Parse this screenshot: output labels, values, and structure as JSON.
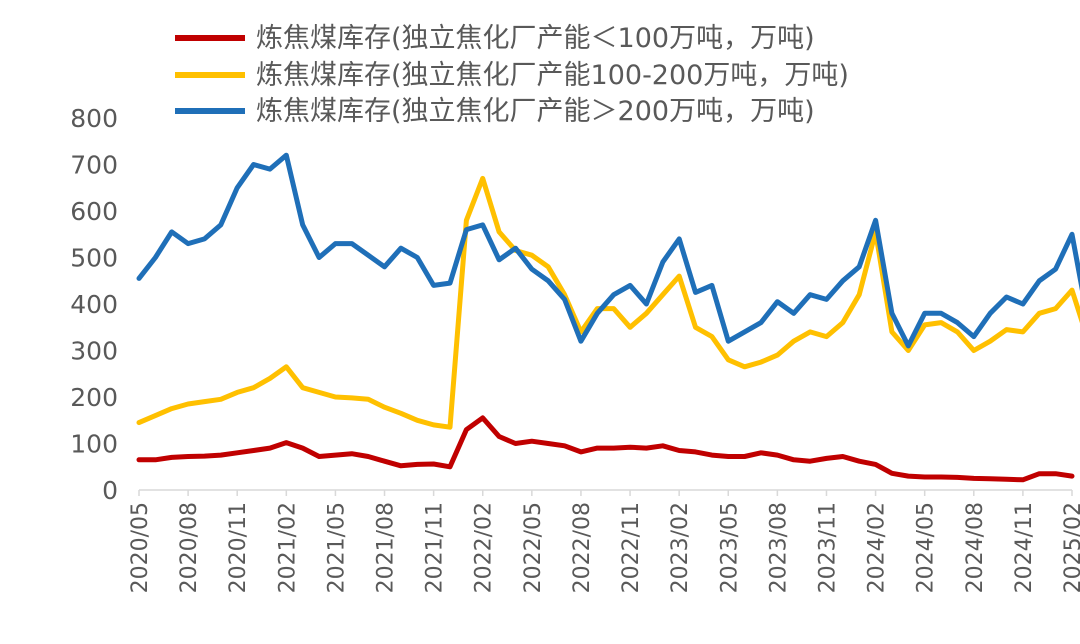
{
  "chart_data": {
    "type": "line",
    "title": "",
    "xlabel": "",
    "ylabel": "",
    "ylim": [
      0,
      800
    ],
    "y_ticks": [
      "0",
      "100",
      "200",
      "300",
      "400",
      "500",
      "600",
      "700",
      "800"
    ],
    "x_tick_labels": [
      "2020/05",
      "2020/08",
      "2020/11",
      "2021/02",
      "2021/05",
      "2021/08",
      "2021/11",
      "2022/02",
      "2022/05",
      "2022/08",
      "2022/11",
      "2023/02",
      "2023/05",
      "2023/08",
      "2023/11",
      "2024/02",
      "2024/05",
      "2024/08",
      "2024/11",
      "2025/02"
    ],
    "legend_position": "top",
    "grid": false,
    "series": [
      {
        "name": "炼焦煤库存(独立焦化厂产能＜100万吨，万吨)",
        "color": "#C00000",
        "points": [
          [
            "2020/05",
            65
          ],
          [
            "2020/06",
            65
          ],
          [
            "2020/07",
            70
          ],
          [
            "2020/08",
            72
          ],
          [
            "2020/09",
            73
          ],
          [
            "2020/10",
            75
          ],
          [
            "2020/11",
            80
          ],
          [
            "2020/12",
            85
          ],
          [
            "2021/01",
            90
          ],
          [
            "2021/02",
            102
          ],
          [
            "2021/03",
            90
          ],
          [
            "2021/04",
            72
          ],
          [
            "2021/05",
            75
          ],
          [
            "2021/06",
            78
          ],
          [
            "2021/07",
            72
          ],
          [
            "2021/08",
            62
          ],
          [
            "2021/09",
            52
          ],
          [
            "2021/10",
            55
          ],
          [
            "2021/11",
            56
          ],
          [
            "2021/12",
            50
          ],
          [
            "2022/01",
            130
          ],
          [
            "2022/02",
            155
          ],
          [
            "2022/03",
            115
          ],
          [
            "2022/04",
            100
          ],
          [
            "2022/05",
            105
          ],
          [
            "2022/06",
            100
          ],
          [
            "2022/07",
            95
          ],
          [
            "2022/08",
            82
          ],
          [
            "2022/09",
            90
          ],
          [
            "2022/10",
            90
          ],
          [
            "2022/11",
            92
          ],
          [
            "2022/12",
            90
          ],
          [
            "2023/01",
            95
          ],
          [
            "2023/02",
            85
          ],
          [
            "2023/03",
            82
          ],
          [
            "2023/04",
            75
          ],
          [
            "2023/05",
            72
          ],
          [
            "2023/06",
            72
          ],
          [
            "2023/07",
            80
          ],
          [
            "2023/08",
            75
          ],
          [
            "2023/09",
            65
          ],
          [
            "2023/10",
            62
          ],
          [
            "2023/11",
            68
          ],
          [
            "2023/12",
            72
          ],
          [
            "2024/01",
            62
          ],
          [
            "2024/02",
            55
          ],
          [
            "2024/03",
            36
          ],
          [
            "2024/04",
            30
          ],
          [
            "2024/05",
            28
          ],
          [
            "2024/06",
            28
          ],
          [
            "2024/07",
            27
          ],
          [
            "2024/08",
            25
          ],
          [
            "2024/09",
            24
          ],
          [
            "2024/10",
            23
          ],
          [
            "2024/11",
            22
          ],
          [
            "2024/12",
            35
          ],
          [
            "2025/01",
            35
          ],
          [
            "2025/02",
            30
          ]
        ]
      },
      {
        "name": "炼焦煤库存(独立焦化厂产能100-200万吨，万吨)",
        "color": "#FFC000",
        "points": [
          [
            "2020/05",
            145
          ],
          [
            "2020/06",
            160
          ],
          [
            "2020/07",
            175
          ],
          [
            "2020/08",
            185
          ],
          [
            "2020/09",
            190
          ],
          [
            "2020/10",
            195
          ],
          [
            "2020/11",
            210
          ],
          [
            "2020/12",
            220
          ],
          [
            "2021/01",
            240
          ],
          [
            "2021/02",
            265
          ],
          [
            "2021/03",
            220
          ],
          [
            "2021/04",
            210
          ],
          [
            "2021/05",
            200
          ],
          [
            "2021/06",
            198
          ],
          [
            "2021/07",
            195
          ],
          [
            "2021/08",
            178
          ],
          [
            "2021/09",
            165
          ],
          [
            "2021/10",
            150
          ],
          [
            "2021/11",
            140
          ],
          [
            "2021/12",
            135
          ],
          [
            "2022/01",
            580
          ],
          [
            "2022/02",
            670
          ],
          [
            "2022/03",
            555
          ],
          [
            "2022/04",
            515
          ],
          [
            "2022/05",
            505
          ],
          [
            "2022/06",
            480
          ],
          [
            "2022/07",
            420
          ],
          [
            "2022/08",
            340
          ],
          [
            "2022/09",
            390
          ],
          [
            "2022/10",
            390
          ],
          [
            "2022/11",
            350
          ],
          [
            "2022/12",
            380
          ],
          [
            "2023/01",
            420
          ],
          [
            "2023/02",
            460
          ],
          [
            "2023/03",
            350
          ],
          [
            "2023/04",
            330
          ],
          [
            "2023/05",
            280
          ],
          [
            "2023/06",
            265
          ],
          [
            "2023/07",
            275
          ],
          [
            "2023/08",
            290
          ],
          [
            "2023/09",
            320
          ],
          [
            "2023/10",
            340
          ],
          [
            "2023/11",
            330
          ],
          [
            "2023/12",
            360
          ],
          [
            "2024/01",
            420
          ],
          [
            "2024/02",
            555
          ],
          [
            "2024/03",
            340
          ],
          [
            "2024/04",
            300
          ],
          [
            "2024/05",
            355
          ],
          [
            "2024/06",
            360
          ],
          [
            "2024/07",
            340
          ],
          [
            "2024/08",
            300
          ],
          [
            "2024/09",
            320
          ],
          [
            "2024/10",
            345
          ],
          [
            "2024/11",
            340
          ],
          [
            "2024/12",
            380
          ],
          [
            "2025/01",
            390
          ],
          [
            "2025/02",
            430
          ],
          [
            "2025/03",
            320
          ]
        ]
      },
      {
        "name": "炼焦煤库存(独立焦化厂产能＞200万吨，万吨)",
        "color": "#1F6FB8",
        "points": [
          [
            "2020/05",
            455
          ],
          [
            "2020/06",
            500
          ],
          [
            "2020/07",
            555
          ],
          [
            "2020/08",
            530
          ],
          [
            "2020/09",
            540
          ],
          [
            "2020/10",
            570
          ],
          [
            "2020/11",
            650
          ],
          [
            "2020/12",
            700
          ],
          [
            "2021/01",
            690
          ],
          [
            "2021/02",
            720
          ],
          [
            "2021/03",
            570
          ],
          [
            "2021/04",
            500
          ],
          [
            "2021/05",
            530
          ],
          [
            "2021/06",
            530
          ],
          [
            "2021/07",
            505
          ],
          [
            "2021/08",
            480
          ],
          [
            "2021/09",
            520
          ],
          [
            "2021/10",
            500
          ],
          [
            "2021/11",
            440
          ],
          [
            "2021/12",
            445
          ],
          [
            "2022/01",
            560
          ],
          [
            "2022/02",
            570
          ],
          [
            "2022/03",
            495
          ],
          [
            "2022/04",
            520
          ],
          [
            "2022/05",
            475
          ],
          [
            "2022/06",
            450
          ],
          [
            "2022/07",
            410
          ],
          [
            "2022/08",
            320
          ],
          [
            "2022/09",
            380
          ],
          [
            "2022/10",
            420
          ],
          [
            "2022/11",
            440
          ],
          [
            "2022/12",
            400
          ],
          [
            "2023/01",
            490
          ],
          [
            "2023/02",
            540
          ],
          [
            "2023/03",
            425
          ],
          [
            "2023/04",
            440
          ],
          [
            "2023/05",
            320
          ],
          [
            "2023/06",
            340
          ],
          [
            "2023/07",
            360
          ],
          [
            "2023/08",
            405
          ],
          [
            "2023/09",
            380
          ],
          [
            "2023/10",
            420
          ],
          [
            "2023/11",
            410
          ],
          [
            "2023/12",
            450
          ],
          [
            "2024/01",
            480
          ],
          [
            "2024/02",
            580
          ],
          [
            "2024/03",
            380
          ],
          [
            "2024/04",
            310
          ],
          [
            "2024/05",
            380
          ],
          [
            "2024/06",
            380
          ],
          [
            "2024/07",
            360
          ],
          [
            "2024/08",
            330
          ],
          [
            "2024/09",
            380
          ],
          [
            "2024/10",
            415
          ],
          [
            "2024/11",
            400
          ],
          [
            "2024/12",
            450
          ],
          [
            "2025/01",
            475
          ],
          [
            "2025/02",
            550
          ],
          [
            "2025/03",
            360
          ]
        ]
      }
    ]
  }
}
